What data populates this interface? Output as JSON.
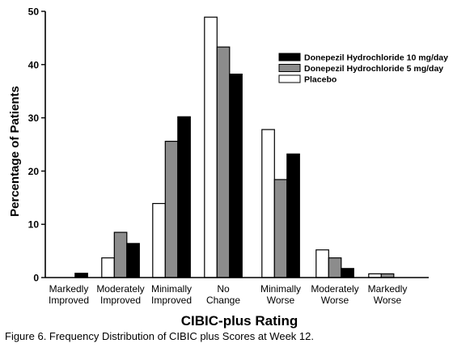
{
  "chart_data": {
    "type": "bar",
    "categories": [
      [
        "Markedly",
        "Improved"
      ],
      [
        "Moderately",
        "Improved"
      ],
      [
        "Minimally",
        "Improved"
      ],
      [
        "No",
        "Change"
      ],
      [
        "Minimally",
        "Worse"
      ],
      [
        "Moderately",
        "Worse"
      ],
      [
        "Markedly",
        "Worse"
      ]
    ],
    "series": [
      {
        "name": "Placebo",
        "color": "#ffffff",
        "values": [
          0,
          3.7,
          13.9,
          48.9,
          27.8,
          5.2,
          0.7
        ]
      },
      {
        "name": "Donepezil Hydrochloride 5 mg/day",
        "color": "#8c8c8c",
        "values": [
          0,
          8.5,
          25.6,
          43.3,
          18.4,
          3.7,
          0.7
        ]
      },
      {
        "name": "Donepezil Hydrochloride 10 mg/day",
        "color": "#000000",
        "values": [
          0.8,
          6.4,
          30.2,
          38.2,
          23.2,
          1.7,
          0
        ]
      }
    ],
    "legend_order": [
      2,
      1,
      0
    ],
    "legend_position": "top-right",
    "ylim": [
      0,
      50
    ],
    "yticks": [
      0,
      10,
      20,
      30,
      40,
      50
    ],
    "xlabel": "CIBIC-plus Rating",
    "ylabel": "Percentage of Patients",
    "grid": false
  },
  "caption": "Figure 6. Frequency Distribution of CIBIC plus Scores at Week 12."
}
